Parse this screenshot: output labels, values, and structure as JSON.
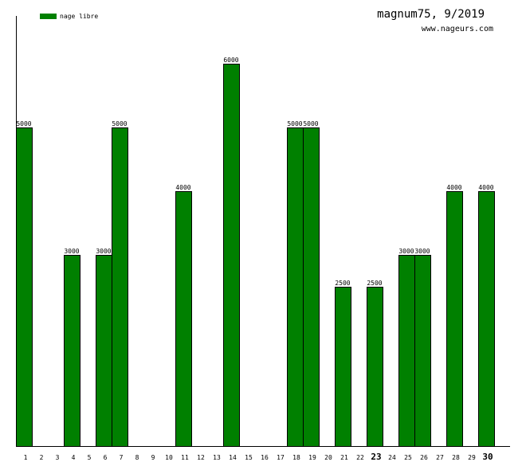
{
  "title": "magnum75, 9/2019",
  "subtitle": "www.nageurs.com",
  "colors": {
    "bar": "#008000",
    "bar_edge": "#000000",
    "axis": "#000000"
  },
  "chart_data": {
    "type": "bar",
    "categories": [
      "1",
      "2",
      "3",
      "4",
      "5",
      "6",
      "7",
      "8",
      "9",
      "10",
      "11",
      "12",
      "13",
      "14",
      "15",
      "16",
      "17",
      "18",
      "19",
      "20",
      "21",
      "22",
      "23",
      "24",
      "25",
      "26",
      "27",
      "28",
      "29",
      "30"
    ],
    "highlighted_categories": [
      "23",
      "30"
    ],
    "series": [
      {
        "name": "nage libre",
        "values": [
          5000,
          0,
          0,
          3000,
          0,
          3000,
          5000,
          0,
          0,
          0,
          4000,
          0,
          0,
          6000,
          0,
          0,
          0,
          5000,
          5000,
          0,
          2500,
          0,
          2500,
          0,
          3000,
          3000,
          0,
          4000,
          0,
          4000
        ]
      }
    ],
    "ylim": [
      0,
      6750
    ],
    "grid": false,
    "legend": "top-left"
  }
}
